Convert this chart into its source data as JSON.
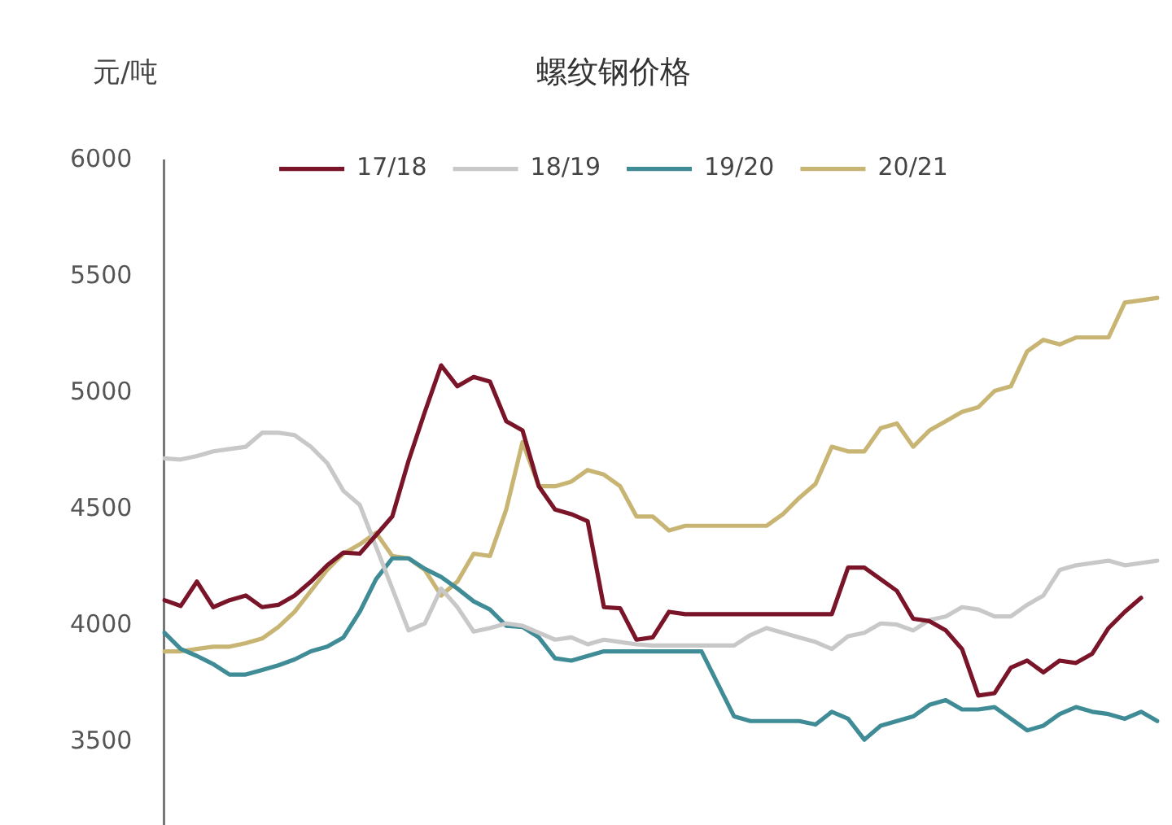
{
  "chart_data": {
    "type": "line",
    "title": "螺纹钢价格",
    "ylabel": "元/吨",
    "categories": [
      null,
      null,
      null,
      null,
      null,
      null,
      null,
      null,
      null,
      null,
      null,
      null,
      null,
      null,
      null,
      null,
      null,
      null,
      null,
      null,
      null,
      null,
      null,
      null,
      null,
      null,
      null,
      null,
      null,
      null,
      null,
      null,
      null,
      null,
      null,
      null,
      null,
      null,
      null,
      null,
      null,
      null,
      null,
      null,
      null,
      null,
      null,
      null,
      null,
      null,
      null,
      null,
      null,
      null,
      null,
      null,
      null,
      null,
      null,
      null,
      null,
      null
    ],
    "series": [
      {
        "name": "17/18",
        "color": "#7a1428",
        "values": [
          4110,
          4085,
          4190,
          4080,
          4110,
          4130,
          4080,
          4090,
          4130,
          4190,
          4260,
          4315,
          4310,
          4390,
          4470,
          4710,
          4920,
          5120,
          5030,
          5070,
          5050,
          4880,
          4840,
          4600,
          4500,
          4480,
          4450,
          4080,
          4075,
          3940,
          3950,
          4060,
          4050,
          4050,
          4050,
          4050,
          4050,
          4050,
          4050,
          4050,
          4050,
          4050,
          4250,
          4250,
          4200,
          4150,
          4030,
          4020,
          3980,
          3900,
          3700,
          3710,
          3820,
          3850,
          3800,
          3850,
          3840,
          3880,
          3990,
          4060,
          4120,
          null
        ]
      },
      {
        "name": "18/19",
        "color": "#c8c8c8",
        "values": [
          4720,
          4715,
          4730,
          4750,
          4760,
          4770,
          4830,
          4830,
          4820,
          4770,
          4700,
          4580,
          4520,
          4340,
          4160,
          3980,
          4010,
          4160,
          4080,
          3975,
          3990,
          4010,
          4000,
          3970,
          3940,
          3950,
          3920,
          3940,
          3930,
          3920,
          3915,
          3915,
          3915,
          3915,
          3915,
          3915,
          3960,
          3990,
          3970,
          3950,
          3930,
          3900,
          3955,
          3970,
          4010,
          4005,
          3980,
          4025,
          4040,
          4080,
          4070,
          4040,
          4040,
          4090,
          4130,
          4240,
          4260,
          4270,
          4280,
          4260,
          4270,
          4280
        ]
      },
      {
        "name": "19/20",
        "color": "#3f8c96",
        "values": [
          3970,
          3900,
          3870,
          3835,
          3790,
          3790,
          3810,
          3830,
          3855,
          3890,
          3910,
          3950,
          4060,
          4200,
          4290,
          4290,
          4245,
          4210,
          4160,
          4105,
          4070,
          4000,
          3995,
          3950,
          3860,
          3850,
          3870,
          3890,
          3890,
          3890,
          3890,
          3890,
          3890,
          3890,
          3750,
          3610,
          3590,
          3590,
          3590,
          3590,
          3575,
          3630,
          3600,
          3510,
          3570,
          3590,
          3610,
          3660,
          3680,
          3640,
          3640,
          3650,
          3600,
          3550,
          3570,
          3620,
          3650,
          3630,
          3620,
          3600,
          3630,
          3590
        ]
      },
      {
        "name": "20/21",
        "color": "#c8b574",
        "values": [
          3890,
          3890,
          3900,
          3910,
          3910,
          3925,
          3945,
          3995,
          4060,
          4150,
          4240,
          4310,
          4350,
          4400,
          4300,
          4290,
          4240,
          4130,
          4190,
          4310,
          4300,
          4500,
          4790,
          4600,
          4600,
          4620,
          4670,
          4650,
          4600,
          4470,
          4470,
          4410,
          4430,
          4430,
          4430,
          4430,
          4430,
          4430,
          4480,
          4550,
          4610,
          4770,
          4750,
          4750,
          4850,
          4870,
          4770,
          4840,
          4880,
          4920,
          4940,
          5010,
          5030,
          5180,
          5230,
          5210,
          5240,
          5240,
          5240,
          5390,
          5400,
          5410
        ]
      }
    ],
    "ylim": [
      3150,
      6000
    ],
    "yticks": [
      3500,
      4000,
      4500,
      5000,
      5500,
      6000
    ],
    "grid": false,
    "legend": "top",
    "tick_labels": "y",
    "marker": "none",
    "line_style": "solid"
  }
}
